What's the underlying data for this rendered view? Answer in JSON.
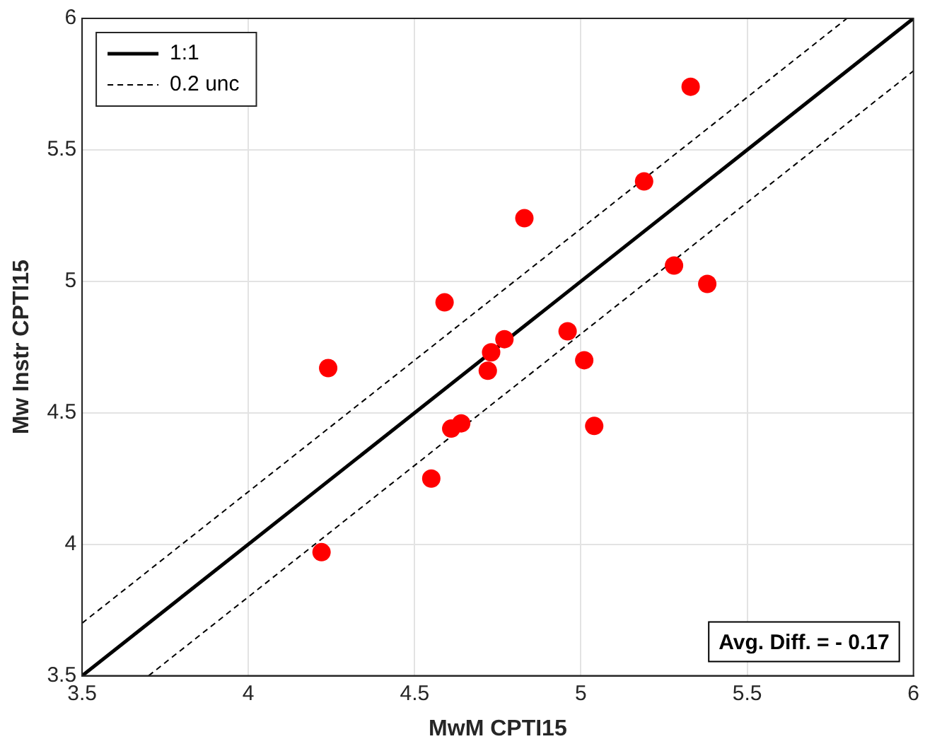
{
  "chart_data": {
    "type": "scatter",
    "xlabel": "MwM CPTI15",
    "ylabel": "Mw Instr CPTI15",
    "xlim": [
      3.5,
      6
    ],
    "ylim": [
      3.5,
      6
    ],
    "xticks": [
      3.5,
      4,
      4.5,
      5,
      5.5,
      6
    ],
    "yticks": [
      3.5,
      4,
      4.5,
      5,
      5.5,
      6
    ],
    "grid": true,
    "legend": "top left",
    "series": [
      {
        "name": "1:1",
        "type": "line",
        "color": "#000000",
        "line_style": "solid",
        "marker": "none",
        "x": [
          3.5,
          6
        ],
        "values": [
          3.5,
          6
        ]
      },
      {
        "name": "0.2 unc",
        "type": "line",
        "color": "#000000",
        "line_style": "dashed",
        "marker": "none",
        "x": [
          3.5,
          5.8
        ],
        "values": [
          3.7,
          6
        ]
      },
      {
        "type": "line",
        "color": "#000000",
        "line_style": "dashed",
        "marker": "none",
        "x": [
          3.7,
          6
        ],
        "values": [
          3.5,
          5.8
        ]
      },
      {
        "type": "scatter",
        "color": "#ff0000",
        "marker": "circle",
        "x": [
          4.22,
          4.24,
          4.55,
          4.59,
          4.61,
          4.64,
          4.72,
          4.73,
          4.77,
          4.83,
          4.96,
          5.01,
          5.04,
          5.19,
          5.28,
          5.33,
          5.38
        ],
        "values": [
          3.97,
          4.67,
          4.25,
          4.92,
          4.44,
          4.46,
          4.66,
          4.73,
          4.78,
          5.24,
          4.81,
          4.7,
          4.45,
          5.38,
          5.06,
          5.74,
          4.99
        ]
      }
    ],
    "annotations": [
      "Avg. Diff. = - 0.17"
    ]
  }
}
